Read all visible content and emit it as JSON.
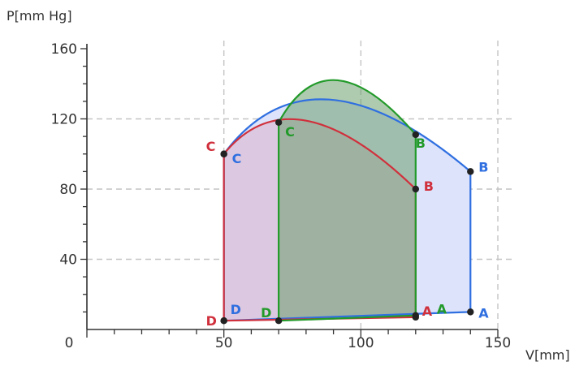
{
  "chart_data": {
    "type": "line",
    "ylabel": "P[mm Hg]",
    "xlabel": "V[mm]",
    "xlim": [
      0,
      150
    ],
    "ylim": [
      0,
      160
    ],
    "x_ticks": [
      "0",
      "50",
      "100",
      "150"
    ],
    "y_ticks": [
      "40",
      "80",
      "120",
      "160"
    ],
    "x_gridlines": [
      50,
      100,
      150
    ],
    "y_gridlines": [
      40,
      80,
      120
    ],
    "grid": "dashed",
    "series": [
      {
        "color": "#2f6fe0",
        "fill": "#dce3fb",
        "points": [
          {
            "label": "A",
            "x": 140,
            "y": 10
          },
          {
            "label": "B",
            "x": 140,
            "y": 90
          },
          {
            "label": "C",
            "x": 50,
            "y": 100
          },
          {
            "label": "D",
            "x": 50,
            "y": 5
          }
        ],
        "peak": {
          "x": 82,
          "y": 131
        }
      },
      {
        "color": "#d0303c",
        "fill": "#dcc8e0",
        "points": [
          {
            "label": "A",
            "x": 120,
            "y": 7
          },
          {
            "label": "B",
            "x": 120,
            "y": 80
          },
          {
            "label": "C",
            "x": 50,
            "y": 100
          },
          {
            "label": "D",
            "x": 50,
            "y": 5
          }
        ],
        "peak": {
          "x": 75,
          "y": 119
        }
      },
      {
        "color": "#229a2a",
        "fill": "rgba(110,160,110,0.55)",
        "points": [
          {
            "label": "A",
            "x": 120,
            "y": 8
          },
          {
            "label": "B",
            "x": 120,
            "y": 111
          },
          {
            "label": "C",
            "x": 70,
            "y": 118
          },
          {
            "label": "D",
            "x": 70,
            "y": 5
          }
        ],
        "peak": {
          "x": 88,
          "y": 142
        }
      }
    ]
  }
}
